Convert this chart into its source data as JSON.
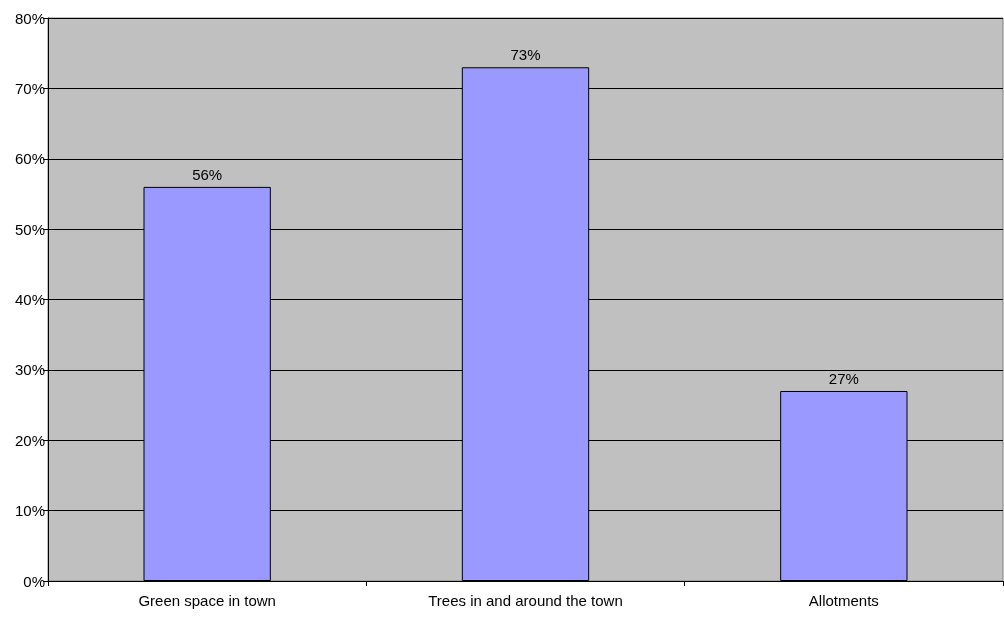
{
  "chart_data": {
    "type": "bar",
    "categories": [
      "Green space in town",
      "Trees in and around the town",
      "Allotments"
    ],
    "values": [
      56,
      73,
      27
    ],
    "value_labels": [
      "56%",
      "73%",
      "27%"
    ],
    "color": "#9999ff",
    "ylim": [
      0,
      80
    ],
    "yticks": [
      {
        "value": 0,
        "label": "0%"
      },
      {
        "value": 10,
        "label": "10%"
      },
      {
        "value": 20,
        "label": "20%"
      },
      {
        "value": 30,
        "label": "30%"
      },
      {
        "value": 40,
        "label": "40%"
      },
      {
        "value": 50,
        "label": "50%"
      },
      {
        "value": 60,
        "label": "60%"
      },
      {
        "value": 70,
        "label": "70%"
      },
      {
        "value": 80,
        "label": "80%"
      }
    ],
    "grid": "y"
  }
}
